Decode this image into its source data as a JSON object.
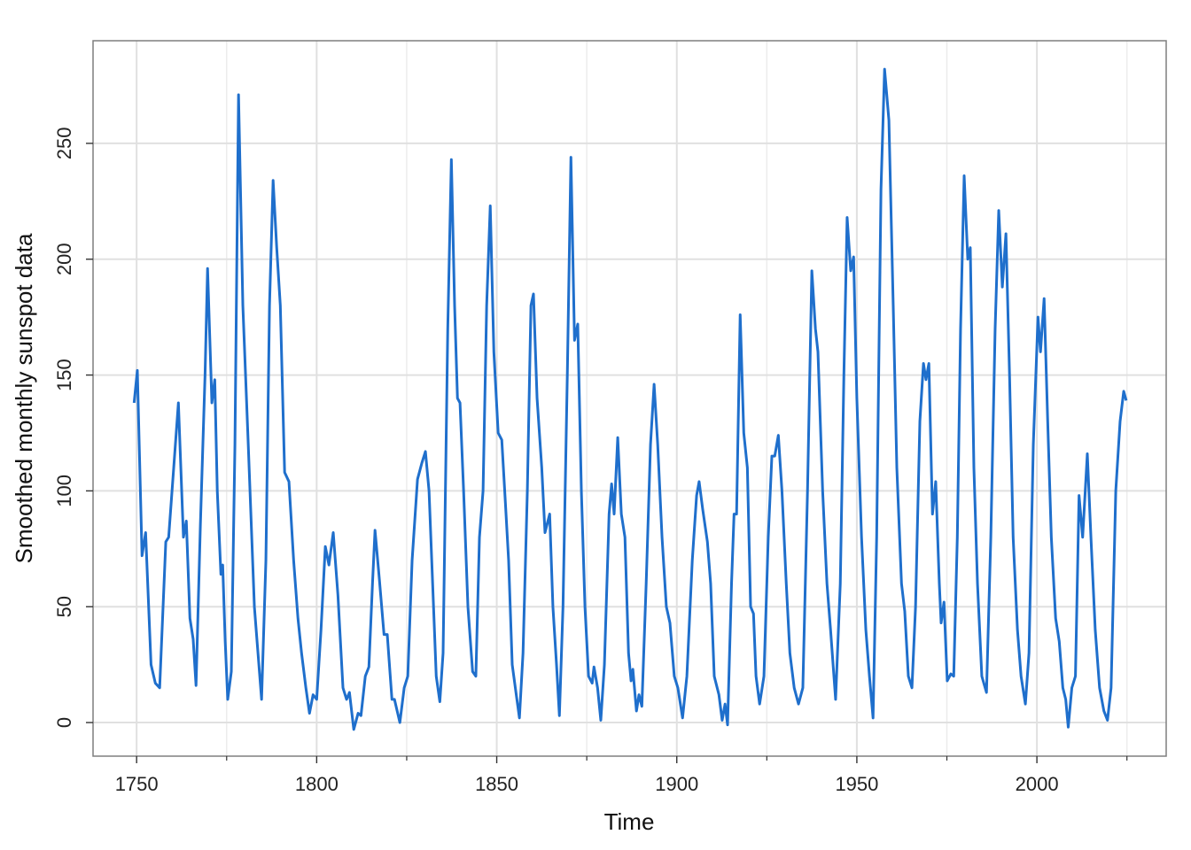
{
  "chart_data": {
    "type": "line",
    "x_label": "Time",
    "y_label": "Smoothed monthly sunspot data",
    "xlim": [
      1737.9,
      2035.9
    ],
    "ylim": [
      -14.5,
      294.3
    ],
    "xticks": [
      1750,
      1800,
      1850,
      1900,
      1950,
      2000
    ],
    "xminorticks": [
      1775,
      1825,
      1875,
      1925,
      1975,
      2025
    ],
    "yticks": [
      0,
      50,
      100,
      150,
      200,
      250
    ],
    "grid": true,
    "series": [
      {
        "color": "#1f6fcc",
        "x": [
          1749.3,
          1750.2,
          1751.5,
          1752.5,
          1754,
          1755.2,
          1756.4,
          1758.1,
          1758.9,
          1760.3,
          1761.6,
          1763,
          1763.8,
          1764.8,
          1765.7,
          1766.5,
          1767.7,
          1769,
          1769.7,
          1770.9,
          1771.7,
          1772.4,
          1773.4,
          1773.9,
          1774.6,
          1775.3,
          1776.3,
          1777.3,
          1778.3,
          1779.5,
          1781,
          1782.7,
          1783.7,
          1784.7,
          1785.9,
          1786.9,
          1787.9,
          1788.9,
          1789.9,
          1791.1,
          1792.3,
          1793.6,
          1794.8,
          1795.8,
          1797,
          1798,
          1799,
          1800,
          1801.2,
          1802.4,
          1803.4,
          1804.6,
          1805.9,
          1807.3,
          1808.3,
          1809.1,
          1810.3,
          1811.5,
          1812.3,
          1813.5,
          1814.5,
          1815.5,
          1816.2,
          1817.4,
          1818.7,
          1819.6,
          1820.9,
          1821.6,
          1823.1,
          1824.3,
          1825.3,
          1826.5,
          1828,
          1829.2,
          1830.2,
          1831.2,
          1832.2,
          1833.2,
          1834.2,
          1835.1,
          1836.4,
          1837.4,
          1838.3,
          1839.1,
          1839.8,
          1840.8,
          1842,
          1843.3,
          1844.2,
          1845.2,
          1846.2,
          1847.2,
          1848.2,
          1849.2,
          1850.4,
          1851.4,
          1852.4,
          1853.3,
          1854.3,
          1855.6,
          1856.3,
          1857.3,
          1858.5,
          1859.5,
          1860.2,
          1861.2,
          1862.5,
          1863.4,
          1864.7,
          1865.6,
          1866.6,
          1867.4,
          1868.4,
          1869.6,
          1870.6,
          1871.6,
          1872.5,
          1873.5,
          1874.5,
          1875.5,
          1876.5,
          1877,
          1878,
          1878.9,
          1879.9,
          1881.2,
          1881.9,
          1882.6,
          1883.6,
          1884.6,
          1885.6,
          1886.6,
          1887.3,
          1887.8,
          1888.8,
          1889.5,
          1890.3,
          1891.5,
          1892.7,
          1893.7,
          1894.7,
          1895.9,
          1897.1,
          1898.1,
          1899.3,
          1900.3,
          1901.6,
          1902.8,
          1904.3,
          1905.5,
          1906.2,
          1907.2,
          1908.5,
          1909.4,
          1910.4,
          1911.7,
          1912.6,
          1913.4,
          1914.1,
          1915.2,
          1915.9,
          1916.6,
          1917.6,
          1918.6,
          1919.6,
          1920.5,
          1921.3,
          1922,
          1923,
          1924.2,
          1925.4,
          1926.4,
          1927.2,
          1928.2,
          1929.2,
          1930.4,
          1931.4,
          1932.6,
          1933.8,
          1935,
          1936.3,
          1937.5,
          1938.5,
          1939.2,
          1940.5,
          1941.7,
          1942.7,
          1944.1,
          1945.4,
          1946.4,
          1947.3,
          1948.3,
          1949.1,
          1950,
          1951.3,
          1952.5,
          1953.5,
          1954.5,
          1955.5,
          1956.7,
          1957.7,
          1958.9,
          1960.1,
          1961.1,
          1962.4,
          1963.3,
          1964.3,
          1965.3,
          1966.3,
          1967.5,
          1968.5,
          1969.2,
          1970,
          1971,
          1971.9,
          1972.9,
          1973.4,
          1974.2,
          1975.1,
          1976.1,
          1976.9,
          1977.9,
          1978.8,
          1979.8,
          1980.8,
          1981.5,
          1982.5,
          1983.5,
          1984.7,
          1986,
          1987.2,
          1988.4,
          1989.4,
          1990.4,
          1991.4,
          1992.4,
          1993.4,
          1994.6,
          1995.6,
          1996.8,
          1997.8,
          1999,
          2000.3,
          2001,
          2002,
          2003,
          2004,
          2005.2,
          2006.2,
          2007.2,
          2008,
          2008.7,
          2009.7,
          2010.7,
          2011.7,
          2012.7,
          2014,
          2015,
          2016.2,
          2017.4,
          2018.6,
          2019.6,
          2020.6,
          2021.9,
          2023.1,
          2024.1,
          2024.8
        ],
        "values": [
          138,
          152,
          72,
          82,
          25,
          17,
          15,
          78,
          80,
          110,
          138,
          80,
          87,
          45,
          36,
          16,
          85,
          150,
          196,
          138,
          148,
          100,
          64,
          68,
          35,
          10,
          22,
          120,
          271,
          180,
          120,
          50,
          30,
          10,
          70,
          180,
          234,
          205,
          180,
          108,
          104,
          70,
          45,
          30,
          15,
          4,
          12,
          10,
          40,
          76,
          68,
          82,
          55,
          15,
          10,
          13,
          -3,
          4,
          3,
          20,
          24,
          60,
          83,
          62,
          38,
          38,
          10,
          10,
          0,
          15,
          20,
          70,
          105,
          112,
          117,
          100,
          60,
          20,
          9,
          30,
          170,
          243,
          180,
          140,
          138,
          100,
          50,
          22,
          20,
          80,
          100,
          180,
          223,
          160,
          125,
          122,
          95,
          70,
          25,
          10,
          2,
          30,
          100,
          180,
          185,
          140,
          110,
          82,
          90,
          50,
          25,
          3,
          50,
          150,
          244,
          165,
          172,
          100,
          50,
          20,
          17,
          24,
          15,
          1,
          25,
          90,
          103,
          90,
          123,
          90,
          80,
          30,
          18,
          23,
          5,
          12,
          7,
          60,
          120,
          146,
          120,
          80,
          50,
          43,
          20,
          15,
          2,
          20,
          70,
          98,
          104,
          92,
          78,
          60,
          20,
          12,
          1,
          8,
          -1,
          60,
          90,
          90,
          176,
          125,
          110,
          50,
          47,
          20,
          8,
          20,
          80,
          115,
          115,
          124,
          100,
          60,
          30,
          15,
          8,
          15,
          100,
          195,
          170,
          160,
          100,
          60,
          40,
          10,
          60,
          150,
          218,
          195,
          201,
          140,
          80,
          40,
          20,
          2,
          80,
          230,
          282,
          260,
          180,
          110,
          60,
          48,
          20,
          15,
          50,
          130,
          155,
          148,
          155,
          90,
          104,
          60,
          43,
          52,
          18,
          21,
          20,
          80,
          170,
          236,
          200,
          205,
          110,
          60,
          20,
          13,
          80,
          170,
          221,
          188,
          211,
          150,
          80,
          40,
          20,
          8,
          30,
          120,
          175,
          160,
          183,
          130,
          80,
          45,
          35,
          15,
          10,
          -2,
          15,
          20,
          98,
          80,
          116,
          80,
          40,
          15,
          5,
          1,
          15,
          100,
          130,
          143,
          139
        ]
      }
    ]
  }
}
